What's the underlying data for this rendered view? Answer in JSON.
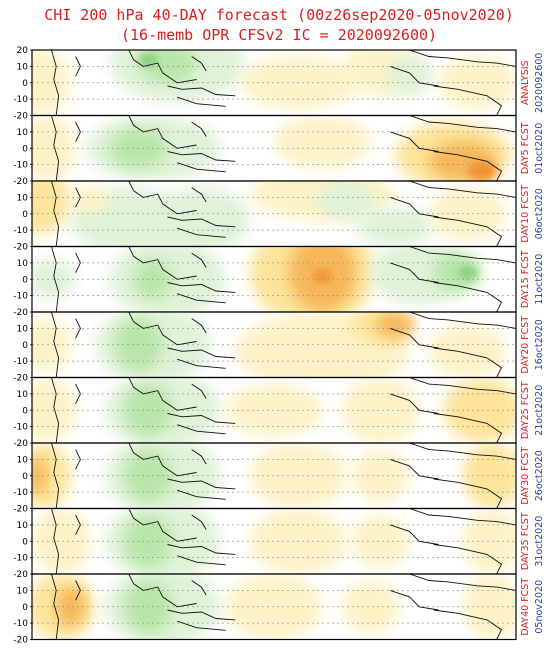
{
  "title_line1": "CHI 200 hPa 40-DAY forecast (00z26sep2020-05nov2020)",
  "title_line2": "(16-memb OPR CFSv2 IC = 2020092600)",
  "colors": {
    "title": "#d81e1e",
    "panel_label": "#d81e1e",
    "date_label": "#2b3fb0",
    "green_light": "#dff3d8",
    "green_mid": "#b8e6a8",
    "green_dark": "#86d07c",
    "yellow_light": "#fdf2c6",
    "yellow_mid": "#fde49a",
    "orange": "#f6b75a",
    "orange_dark": "#ef9431"
  },
  "chart_data": {
    "type": "heatmap",
    "variable": "CHI 200 hPa",
    "ylim": [
      -20,
      20
    ],
    "yticks": [
      "20",
      "10",
      "0",
      "-10",
      "-20"
    ],
    "panels": [
      {
        "label": "ANALYSIS",
        "date": "2020092600"
      },
      {
        "label": "DAY5 FCST",
        "date": "01oct2020"
      },
      {
        "label": "DAY10 FCST",
        "date": "06oct2020"
      },
      {
        "label": "DAY15 FCST",
        "date": "11oct2020"
      },
      {
        "label": "DAY20 FCST",
        "date": "16oct2020"
      },
      {
        "label": "DAY25 FCST",
        "date": "21oct2020"
      },
      {
        "label": "DAY30 FCST",
        "date": "26oct2020"
      },
      {
        "label": "DAY35 FCST",
        "date": "31oct2020"
      },
      {
        "label": "DAY40 FCST",
        "date": "05nov2020"
      }
    ]
  }
}
